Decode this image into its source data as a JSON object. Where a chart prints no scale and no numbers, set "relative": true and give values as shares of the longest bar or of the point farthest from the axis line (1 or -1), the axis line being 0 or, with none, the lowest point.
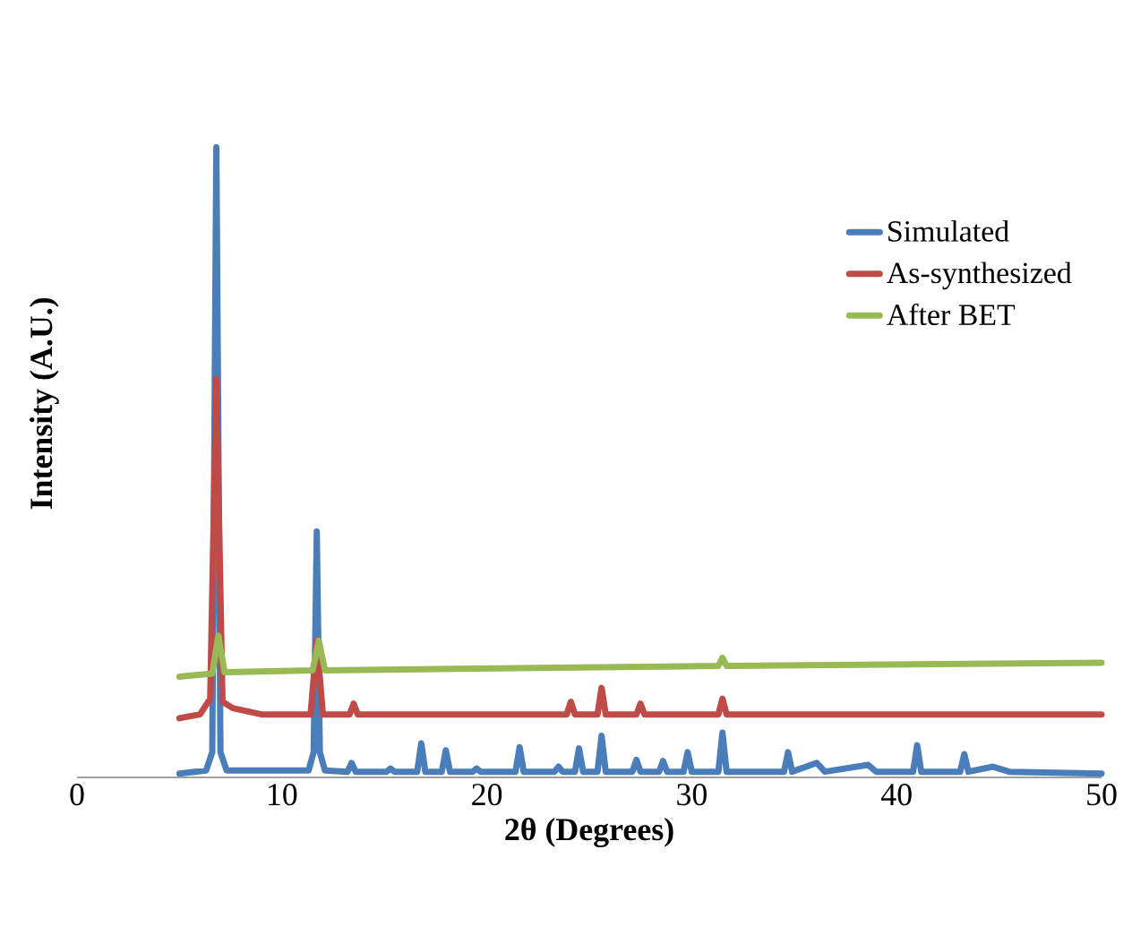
{
  "chart_data": {
    "type": "line",
    "xlabel": "2θ (Degrees)",
    "ylabel": "Intensity (A.U.)",
    "relative": true,
    "xlim": [
      0,
      50
    ],
    "xticks": [
      0,
      10,
      20,
      30,
      40,
      50
    ],
    "legend": "top right",
    "marker": "none",
    "series": [
      {
        "name": "Simulated",
        "color": "#4a7ebb",
        "x": [
          5.0,
          6.3,
          6.6,
          6.8,
          7.0,
          7.3,
          11.3,
          11.55,
          11.7,
          11.85,
          12.1,
          13.2,
          13.4,
          13.6,
          15.1,
          15.3,
          15.5,
          16.6,
          16.8,
          17.0,
          17.8,
          18.0,
          18.2,
          19.3,
          19.5,
          19.7,
          21.4,
          21.6,
          21.8,
          23.3,
          23.5,
          23.7,
          24.3,
          24.5,
          24.7,
          25.4,
          25.6,
          25.8,
          27.1,
          27.3,
          27.5,
          28.4,
          28.6,
          28.8,
          29.6,
          29.8,
          30.0,
          31.3,
          31.5,
          31.7,
          34.5,
          34.7,
          34.9,
          36.1,
          36.5,
          38.6,
          39.0,
          40.8,
          41.0,
          41.2,
          43.1,
          43.3,
          43.5,
          44.7,
          45.5,
          50.0
        ],
        "values": [
          0.006,
          0.011,
          0.04,
          1.0,
          0.04,
          0.011,
          0.011,
          0.04,
          0.39,
          0.04,
          0.011,
          0.009,
          0.023,
          0.009,
          0.009,
          0.014,
          0.009,
          0.009,
          0.054,
          0.009,
          0.009,
          0.043,
          0.009,
          0.009,
          0.014,
          0.009,
          0.009,
          0.048,
          0.009,
          0.009,
          0.017,
          0.009,
          0.009,
          0.046,
          0.009,
          0.009,
          0.066,
          0.009,
          0.009,
          0.028,
          0.009,
          0.009,
          0.026,
          0.009,
          0.009,
          0.04,
          0.009,
          0.009,
          0.071,
          0.009,
          0.009,
          0.04,
          0.009,
          0.023,
          0.009,
          0.02,
          0.009,
          0.009,
          0.051,
          0.009,
          0.009,
          0.037,
          0.009,
          0.017,
          0.009,
          0.006
        ]
      },
      {
        "name": "As-synthesized",
        "color": "#be4b48",
        "x": [
          5.0,
          6.0,
          6.5,
          6.8,
          7.1,
          7.6,
          9.0,
          11.4,
          11.7,
          12.0,
          13.3,
          13.5,
          13.7,
          23.9,
          24.1,
          24.3,
          25.4,
          25.6,
          25.8,
          27.3,
          27.5,
          27.7,
          31.3,
          31.5,
          31.7,
          40.0,
          50.0
        ],
        "values": [
          0.094,
          0.1,
          0.125,
          0.632,
          0.12,
          0.11,
          0.1,
          0.1,
          0.217,
          0.1,
          0.1,
          0.117,
          0.1,
          0.1,
          0.12,
          0.1,
          0.1,
          0.142,
          0.1,
          0.1,
          0.117,
          0.1,
          0.1,
          0.125,
          0.1,
          0.1,
          0.1
        ]
      },
      {
        "name": "After BET",
        "color": "#98b954",
        "x": [
          5.0,
          6.6,
          6.9,
          7.2,
          11.5,
          11.8,
          12.1,
          31.3,
          31.5,
          31.7,
          50.0
        ],
        "values": [
          0.16,
          0.165,
          0.225,
          0.167,
          0.17,
          0.217,
          0.17,
          0.177,
          0.19,
          0.177,
          0.182
        ]
      }
    ]
  }
}
